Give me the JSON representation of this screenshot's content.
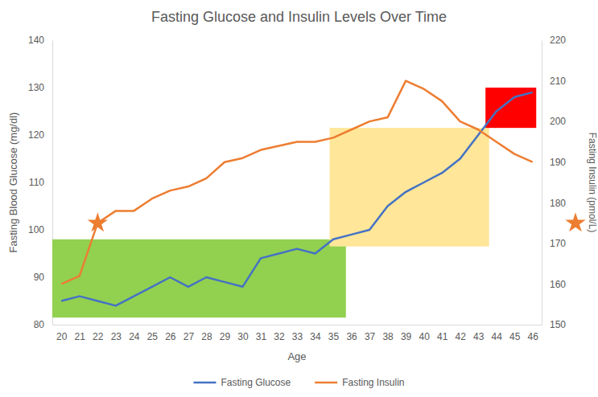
{
  "chart_data": {
    "type": "line",
    "title": "Fasting Glucose and Insulin Levels Over Time",
    "x_label": "Age",
    "y_label": "Fasting Blood Glucose (mg/dl)",
    "y2_label": "Fasting Insulin (pmol/L)",
    "x": [
      20,
      21,
      22,
      23,
      24,
      25,
      26,
      27,
      28,
      29,
      30,
      31,
      32,
      33,
      34,
      35,
      36,
      37,
      38,
      39,
      40,
      41,
      42,
      43,
      44,
      45,
      46
    ],
    "xlim": [
      19.5,
      46.5
    ],
    "xticks": [
      20,
      21,
      22,
      23,
      24,
      25,
      26,
      27,
      28,
      29,
      30,
      31,
      32,
      33,
      34,
      35,
      36,
      37,
      38,
      39,
      40,
      41,
      42,
      43,
      44,
      45,
      46
    ],
    "ylim": [
      80,
      140
    ],
    "yticks": [
      80,
      90,
      100,
      110,
      120,
      130,
      140
    ],
    "y2lim": [
      150,
      220
    ],
    "y2ticks": [
      150,
      160,
      170,
      180,
      190,
      200,
      210,
      220
    ],
    "grid": false,
    "legend": "bottom",
    "series": [
      {
        "name": "Fasting Glucose",
        "color": "#4472c4",
        "values": [
          85,
          86,
          85,
          84,
          86,
          88,
          90,
          88,
          90,
          89,
          88,
          94,
          95,
          96,
          95,
          98,
          99,
          100,
          105,
          108,
          110,
          112,
          115,
          120,
          125,
          128,
          129
        ]
      },
      {
        "name": "Fasting Insulin",
        "color": "#ed7d31",
        "axis": "y2",
        "values": [
          160,
          162,
          175,
          178,
          178,
          181,
          183,
          184,
          186,
          190,
          191,
          193,
          194,
          195,
          195,
          196,
          198,
          200,
          201,
          210,
          208,
          205,
          200,
          198,
          195,
          192,
          190
        ]
      }
    ],
    "shaded_regions": [
      {
        "x0": 19.5,
        "x1": 35.7,
        "y0": 81.5,
        "y1": 98,
        "color": "#92d050"
      },
      {
        "x0": 34.8,
        "x1": 43.6,
        "y0": 96.5,
        "y1": 121.5,
        "color": "#ffe699"
      },
      {
        "x0": 43.4,
        "x1": 46.2,
        "y0": 121.5,
        "y1": 130,
        "color": "#ff0000"
      }
    ],
    "star_markers": [
      {
        "x": 22,
        "y": 175,
        "axis": "y2",
        "marker": "star",
        "color": "#ed7d31"
      },
      {
        "y": 175,
        "axis": "y2",
        "marker": "star",
        "color": "#ed7d31"
      }
    ]
  }
}
